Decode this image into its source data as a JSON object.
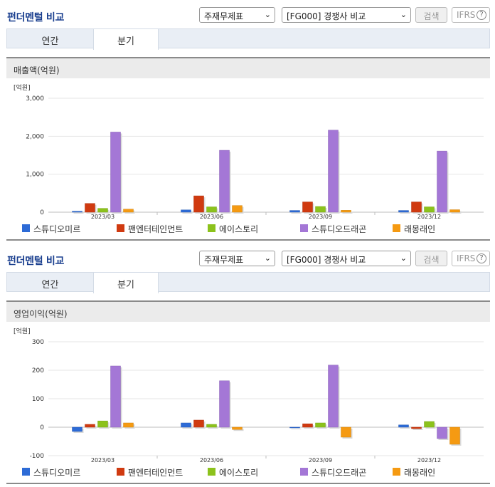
{
  "panels": [
    {
      "title": "펀더멘털 비교",
      "select_a": "주재무제표",
      "select_b": "[FG000] 경쟁사 비교",
      "search_label": "검색",
      "ifrs_label": "IFRS",
      "help_glyph": "?",
      "tabs": [
        "연간",
        "분기"
      ],
      "metric_label": "매출액(억원)",
      "unit_label": "[억원]"
    },
    {
      "title": "펀더멘털 비교",
      "select_a": "주재무제표",
      "select_b": "[FG000] 경쟁사 비교",
      "search_label": "검색",
      "ifrs_label": "IFRS",
      "help_glyph": "?",
      "tabs": [
        "연간",
        "분기"
      ],
      "metric_label": "영업이익(억원)",
      "unit_label": "[억원]"
    }
  ],
  "colors": {
    "스튜디오미르": "#2d6bd6",
    "팬엔터테인먼트": "#d03a10",
    "에이스토리": "#8cc21c",
    "스튜디오드래곤": "#a477d6",
    "래몽래인": "#f59a12"
  },
  "chart_data": [
    {
      "type": "bar",
      "categories": [
        "2023/03",
        "2023/06",
        "2023/09",
        "2023/12"
      ],
      "ylim": [
        0,
        3000
      ],
      "yticks": [
        0,
        1000,
        2000,
        3000
      ],
      "ytick_labels": [
        "0",
        "1,000",
        "2,000",
        "3,000"
      ],
      "legend": "bottom",
      "series": [
        {
          "name": "스튜디오미르",
          "values": [
            25,
            60,
            45,
            45
          ]
        },
        {
          "name": "팬엔터테인먼트",
          "values": [
            230,
            430,
            270,
            270
          ]
        },
        {
          "name": "에이스토리",
          "values": [
            100,
            140,
            150,
            140
          ]
        },
        {
          "name": "스튜디오드래곤",
          "values": [
            2110,
            1630,
            2160,
            1610
          ]
        },
        {
          "name": "래몽래인",
          "values": [
            80,
            175,
            50,
            65
          ]
        }
      ]
    },
    {
      "type": "bar",
      "categories": [
        "2023/03",
        "2023/06",
        "2023/09",
        "2023/12"
      ],
      "ylim": [
        -100,
        300
      ],
      "yticks": [
        -100,
        0,
        100,
        200,
        300
      ],
      "ytick_labels": [
        "-100",
        "0",
        "100",
        "200",
        "300"
      ],
      "legend": "bottom",
      "series": [
        {
          "name": "스튜디오미르",
          "values": [
            -15,
            15,
            0,
            8
          ]
        },
        {
          "name": "팬엔터테인먼트",
          "values": [
            10,
            25,
            12,
            -5
          ]
        },
        {
          "name": "에이스토리",
          "values": [
            22,
            10,
            15,
            20
          ]
        },
        {
          "name": "스튜디오드래곤",
          "values": [
            215,
            163,
            218,
            -40
          ]
        },
        {
          "name": "래몽래인",
          "values": [
            15,
            -8,
            -35,
            -60
          ]
        }
      ]
    }
  ]
}
